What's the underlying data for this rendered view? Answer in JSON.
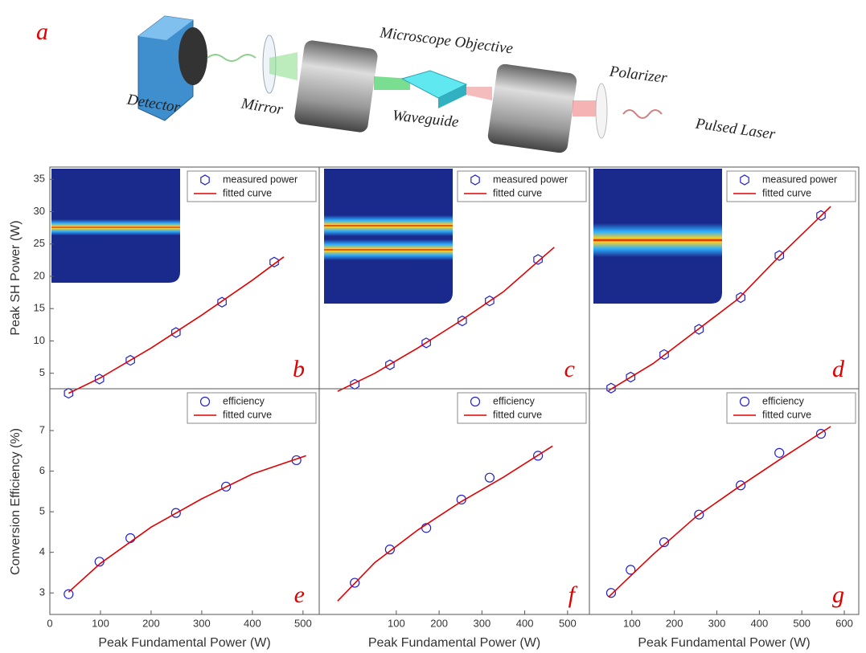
{
  "diagram": {
    "panel_label": "a",
    "labels": [
      "Microscope Objective",
      "Polarizer",
      "Detector",
      "Mirror",
      "Waveguide",
      "Pulsed Laser"
    ]
  },
  "chart_data": [
    {
      "type": "scatter",
      "panel_label": "b",
      "ylabel": "Peak SH Power (W)",
      "xlim": [
        0,
        532
      ],
      "ylim": [
        2.6,
        36.9
      ],
      "yticks": [
        5,
        10,
        15,
        20,
        25,
        30,
        35
      ],
      "legend": "upper right",
      "series": [
        {
          "name": "measured power",
          "color": "#2020d0",
          "marker": "hexagon",
          "x": [
            37,
            98,
            159,
            249,
            340,
            443
          ],
          "values": [
            1.9,
            4.1,
            7.0,
            11.3,
            16.0,
            22.2
          ]
        },
        {
          "name": "fitted curve",
          "color": "#e00000",
          "x": [
            37,
            100,
            200,
            300,
            400,
            462
          ],
          "values": [
            1.9,
            4.3,
            8.9,
            14.0,
            19.4,
            23.0
          ]
        }
      ]
    },
    {
      "type": "scatter",
      "panel_label": "c",
      "xlim": [
        -80,
        551
      ],
      "ylim": [
        2.6,
        36.9
      ],
      "legend": "upper right",
      "series": [
        {
          "name": "measured power",
          "color": "#2020d0",
          "marker": "hexagon",
          "x": [
            3,
            85,
            170,
            254,
            318,
            431
          ],
          "values": [
            3.3,
            6.3,
            9.7,
            13.1,
            16.2,
            22.6
          ]
        },
        {
          "name": "fitted curve",
          "color": "#e00000",
          "x": [
            -37,
            50,
            150,
            250,
            350,
            469
          ],
          "values": [
            2.2,
            5.0,
            8.9,
            13.1,
            17.6,
            24.5
          ]
        }
      ]
    },
    {
      "type": "scatter",
      "panel_label": "d",
      "xlim": [
        0,
        634
      ],
      "ylim": [
        2.6,
        36.9
      ],
      "legend": "upper right",
      "series": [
        {
          "name": "measured power",
          "color": "#2020d0",
          "marker": "hexagon",
          "x": [
            51,
            97,
            176,
            258,
            356,
            447,
            545
          ],
          "values": [
            2.7,
            4.4,
            7.9,
            11.8,
            16.7,
            23.2,
            29.4
          ]
        },
        {
          "name": "fitted curve",
          "color": "#e00000",
          "x": [
            45,
            150,
            250,
            350,
            450,
            568
          ],
          "values": [
            2.3,
            6.5,
            11.5,
            16.5,
            23.3,
            30.8
          ]
        }
      ]
    },
    {
      "type": "scatter",
      "panel_label": "e",
      "ylabel": "Conversion Efficiency (%)",
      "xlabel": "Peak Fundamental Power (W)",
      "xlim": [
        0,
        532
      ],
      "ylim": [
        2.47,
        8.03
      ],
      "xticks": [
        0,
        100,
        200,
        300,
        400,
        500
      ],
      "yticks": [
        3,
        4,
        5,
        6,
        7
      ],
      "legend": "upper right",
      "series": [
        {
          "name": "efficiency",
          "color": "#2020d0",
          "marker": "circle",
          "x": [
            37,
            98,
            159,
            249,
            348,
            487
          ],
          "values": [
            2.97,
            3.77,
            4.35,
            4.97,
            5.62,
            6.27
          ]
        },
        {
          "name": "fitted curve",
          "color": "#e00000",
          "x": [
            37,
            100,
            200,
            300,
            400,
            506
          ],
          "values": [
            3.02,
            3.73,
            4.62,
            5.32,
            5.93,
            6.38
          ]
        }
      ]
    },
    {
      "type": "scatter",
      "panel_label": "f",
      "xlabel": "Peak Fundamental Power (W)",
      "xlim": [
        -80,
        551
      ],
      "ylim": [
        2.47,
        8.03
      ],
      "xticks": [
        100,
        200,
        300,
        400,
        500
      ],
      "legend": "upper right",
      "series": [
        {
          "name": "efficiency",
          "color": "#2020d0",
          "marker": "circle",
          "x": [
            3,
            85,
            170,
            252,
            318,
            431
          ],
          "values": [
            3.25,
            4.07,
            4.6,
            5.3,
            5.84,
            6.38
          ]
        },
        {
          "name": "fitted curve",
          "color": "#e00000",
          "x": [
            -37,
            50,
            150,
            250,
            350,
            465
          ],
          "values": [
            2.8,
            3.75,
            4.55,
            5.24,
            5.85,
            6.62
          ]
        }
      ]
    },
    {
      "type": "scatter",
      "panel_label": "g",
      "xlabel": "Peak Fundamental Power (W)",
      "xlim": [
        0,
        634
      ],
      "ylim": [
        2.47,
        8.03
      ],
      "xticks": [
        100,
        200,
        300,
        400,
        500,
        600
      ],
      "legend": "upper right",
      "series": [
        {
          "name": "efficiency",
          "color": "#2020d0",
          "marker": "circle",
          "x": [
            51,
            97,
            176,
            258,
            356,
            447,
            545
          ],
          "values": [
            3.0,
            3.57,
            4.25,
            4.93,
            5.65,
            6.45,
            6.92
          ]
        },
        {
          "name": "fitted curve",
          "color": "#e00000",
          "x": [
            45,
            150,
            250,
            350,
            450,
            568
          ],
          "values": [
            2.9,
            3.95,
            4.87,
            5.6,
            6.3,
            7.1
          ]
        }
      ]
    }
  ]
}
